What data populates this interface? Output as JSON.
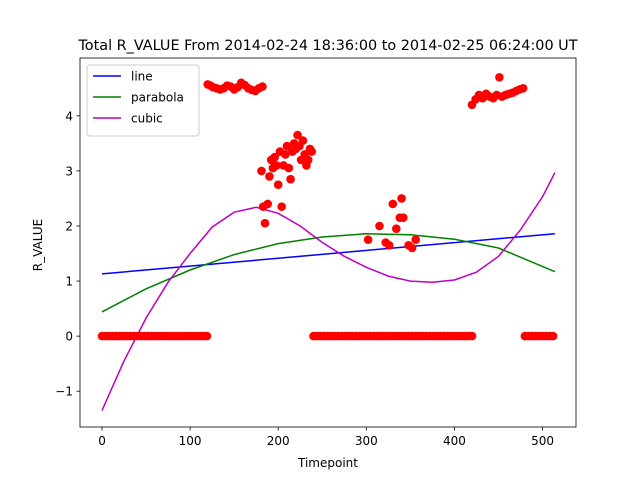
{
  "chart_data": {
    "type": "scatter",
    "title": "Total R_VALUE From 2014-02-24 18:36:00 to 2014-02-25 06:24:00 UT",
    "xlabel": "Timepoint",
    "ylabel": "R_VALUE",
    "xlim": [
      -25,
      538
    ],
    "ylim": [
      -1.65,
      5.05
    ],
    "xticks": [
      0,
      100,
      200,
      300,
      400,
      500
    ],
    "yticks": [
      -1,
      0,
      1,
      2,
      3,
      4
    ],
    "legend_position": "upper left",
    "grid": false,
    "series": [
      {
        "name": "line",
        "kind": "line",
        "color": "#0000ff",
        "x": [
          0,
          514
        ],
        "y": [
          1.13,
          1.86
        ]
      },
      {
        "name": "parabola",
        "kind": "line",
        "color": "#008000",
        "x": [
          0,
          50,
          100,
          150,
          200,
          250,
          300,
          350,
          400,
          450,
          514
        ],
        "y": [
          0.44,
          0.86,
          1.2,
          1.48,
          1.68,
          1.8,
          1.86,
          1.84,
          1.76,
          1.6,
          1.17
        ]
      },
      {
        "name": "cubic",
        "kind": "line",
        "color": "#bf00bf",
        "x": [
          0,
          25,
          50,
          75,
          100,
          125,
          150,
          175,
          200,
          225,
          250,
          275,
          300,
          325,
          350,
          375,
          400,
          425,
          450,
          475,
          500,
          514
        ],
        "y": [
          -1.35,
          -0.45,
          0.33,
          0.98,
          1.5,
          1.98,
          2.25,
          2.34,
          2.23,
          2.0,
          1.7,
          1.45,
          1.25,
          1.09,
          1.0,
          0.98,
          1.02,
          1.16,
          1.45,
          1.93,
          2.53,
          2.97
        ]
      },
      {
        "name": "",
        "kind": "scatter",
        "color": "#ff0000",
        "x": [
          0,
          4,
          8,
          12,
          16,
          20,
          24,
          28,
          32,
          36,
          40,
          44,
          48,
          52,
          56,
          60,
          64,
          68,
          72,
          76,
          80,
          84,
          88,
          92,
          96,
          100,
          104,
          108,
          112,
          116,
          119,
          120,
          123,
          126,
          130,
          134,
          138,
          142,
          146,
          150,
          154,
          158,
          162,
          166,
          170,
          174,
          178,
          182,
          181,
          183,
          185,
          188,
          190,
          192,
          194,
          196,
          198,
          200,
          202,
          204,
          206,
          208,
          210,
          212,
          214,
          216,
          218,
          220,
          222,
          224,
          226,
          228,
          230,
          232,
          234,
          236,
          238,
          240,
          244,
          248,
          252,
          256,
          260,
          264,
          268,
          272,
          276,
          280,
          284,
          288,
          292,
          296,
          300,
          304,
          308,
          312,
          316,
          320,
          324,
          328,
          332,
          336,
          340,
          344,
          348,
          352,
          356,
          360,
          364,
          368,
          372,
          376,
          380,
          384,
          388,
          392,
          396,
          400,
          404,
          408,
          412,
          416,
          420,
          302,
          315,
          322,
          326,
          330,
          334,
          338,
          340,
          342,
          348,
          352,
          356,
          420,
          424,
          428,
          432,
          436,
          440,
          444,
          448,
          451,
          454,
          458,
          462,
          466,
          470,
          474,
          478,
          480,
          484,
          488,
          492,
          496,
          500,
          504,
          508,
          512
        ],
        "y": [
          0,
          0,
          0,
          0,
          0,
          0,
          0,
          0,
          0,
          0,
          0,
          0,
          0,
          0,
          0,
          0,
          0,
          0,
          0,
          0,
          0,
          0,
          0,
          0,
          0,
          0,
          0,
          0,
          0,
          0,
          0,
          4.57,
          4.55,
          4.52,
          4.5,
          4.48,
          4.5,
          4.55,
          4.53,
          4.48,
          4.52,
          4.6,
          4.56,
          4.5,
          4.47,
          4.45,
          4.5,
          4.53,
          3.0,
          2.35,
          2.05,
          2.4,
          2.9,
          3.2,
          3.05,
          3.25,
          3.1,
          2.75,
          3.35,
          2.35,
          3.1,
          3.3,
          3.45,
          3.05,
          2.85,
          3.35,
          3.5,
          3.4,
          3.65,
          3.45,
          3.2,
          3.55,
          3.3,
          3.1,
          3.2,
          3.4,
          3.35,
          0,
          0,
          0,
          0,
          0,
          0,
          0,
          0,
          0,
          0,
          0,
          0,
          0,
          0,
          0,
          0,
          0,
          0,
          0,
          0,
          0,
          0,
          0,
          0,
          0,
          0,
          0,
          0,
          0,
          0,
          0,
          0,
          0,
          0,
          0,
          0,
          0,
          0,
          0,
          0,
          0,
          0,
          0,
          0,
          0,
          0,
          1.75,
          2.0,
          1.7,
          1.65,
          2.4,
          1.95,
          2.15,
          2.5,
          2.15,
          1.65,
          1.6,
          1.75,
          4.2,
          4.3,
          4.38,
          4.32,
          4.4,
          4.35,
          4.32,
          4.38,
          4.7,
          4.35,
          4.38,
          4.4,
          4.42,
          4.45,
          4.48,
          4.5,
          0,
          0,
          0,
          0,
          0,
          0,
          0,
          0,
          0
        ]
      }
    ]
  }
}
